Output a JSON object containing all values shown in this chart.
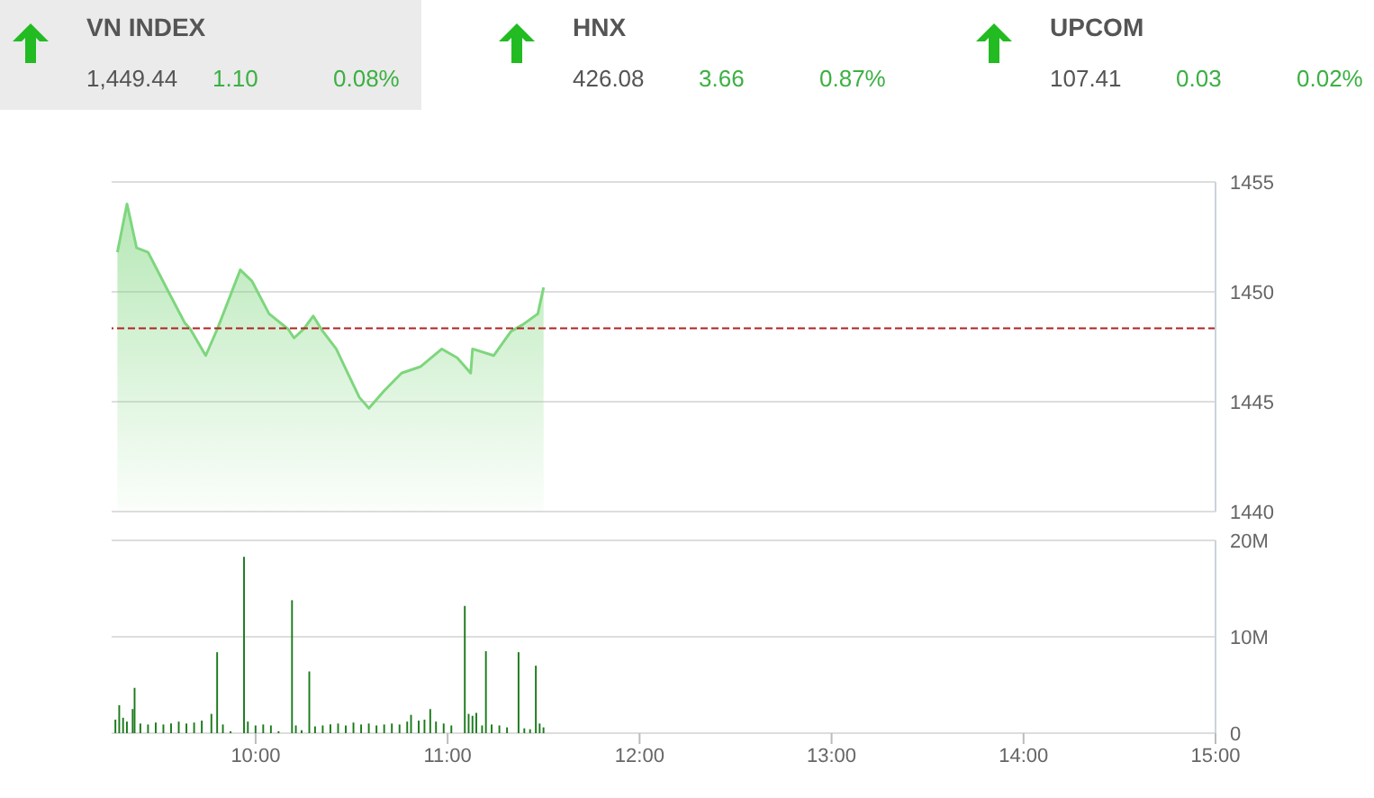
{
  "chart_data": [
    {
      "type": "other",
      "categories": [
        "VN INDEX",
        "HNX",
        "UPCOM"
      ],
      "annotations": [
        "1,449.44",
        "1.10",
        "0.08%",
        "426.08",
        "3.66",
        "0.87%",
        "107.41",
        "0.03",
        "0.02%"
      ]
    },
    {
      "type": "area",
      "xlim": [
        9.25,
        15
      ],
      "ylim": [
        1440,
        1455
      ],
      "yticks": [
        1440,
        1445,
        1450,
        1455
      ],
      "grid": "y",
      "tick_labels": "y",
      "ref_lines": [
        {
          "axis": "y",
          "value": 1448.34,
          "color": "#b22222",
          "line_style": "dashed"
        }
      ],
      "series": [
        {
          "color": "#7ed67e",
          "x": [
            9.28,
            9.33,
            9.38,
            9.44,
            9.54,
            9.63,
            9.66,
            9.74,
            9.8,
            9.92,
            9.98,
            10.07,
            10.17,
            10.2,
            10.25,
            10.3,
            10.35,
            10.42,
            10.48,
            10.54,
            10.59,
            10.67,
            10.76,
            10.86,
            10.97,
            11.05,
            11.12,
            11.13,
            11.24,
            11.33,
            11.39,
            11.47,
            11.5
          ],
          "values": [
            1451.8,
            1454.0,
            1452.0,
            1451.8,
            1450.1,
            1448.6,
            1448.3,
            1447.1,
            1448.3,
            1451.0,
            1450.5,
            1449.0,
            1448.3,
            1447.9,
            1448.3,
            1448.9,
            1448.2,
            1447.4,
            1446.3,
            1445.2,
            1444.7,
            1445.5,
            1446.3,
            1446.6,
            1447.4,
            1447.0,
            1446.3,
            1447.4,
            1447.1,
            1448.2,
            1448.5,
            1449.0,
            1450.2
          ]
        }
      ]
    },
    {
      "type": "bar",
      "xlim": [
        9.25,
        15
      ],
      "xticks": [
        {
          "value": 10,
          "label": "10:00"
        },
        {
          "value": 11,
          "label": "11:00"
        },
        {
          "value": 12,
          "label": "12:00"
        },
        {
          "value": 13,
          "label": "13:00"
        },
        {
          "value": 14,
          "label": "14:00"
        },
        {
          "value": 15,
          "label": "15:00"
        }
      ],
      "ylim": [
        0,
        20
      ],
      "yticks": [
        0,
        {
          "value": 10,
          "label": "10M"
        },
        {
          "value": 20,
          "label": "20M"
        }
      ],
      "grid": "y",
      "series": [
        {
          "color": "#1a7a1a",
          "x": [
            9.27,
            9.29,
            9.31,
            9.33,
            9.36,
            9.37,
            9.4,
            9.44,
            9.48,
            9.52,
            9.56,
            9.6,
            9.64,
            9.68,
            9.72,
            9.77,
            9.8,
            9.83,
            9.87,
            9.91,
            9.94,
            9.96,
            10.0,
            10.04,
            10.08,
            10.12,
            10.16,
            10.19,
            10.21,
            10.24,
            10.28,
            10.31,
            10.35,
            10.39,
            10.43,
            10.47,
            10.51,
            10.55,
            10.59,
            10.63,
            10.67,
            10.71,
            10.75,
            10.79,
            10.81,
            10.85,
            10.88,
            10.91,
            10.94,
            10.98,
            11.02,
            11.06,
            11.09,
            11.11,
            11.13,
            11.15,
            11.18,
            11.2,
            11.23,
            11.27,
            11.31,
            11.34,
            11.37,
            11.4,
            11.43,
            11.46,
            11.48,
            11.5
          ],
          "values": [
            1.4,
            2.9,
            1.6,
            1.2,
            2.5,
            4.7,
            1.0,
            0.9,
            1.1,
            0.9,
            1.0,
            1.2,
            1.0,
            1.1,
            1.3,
            2.0,
            8.4,
            0.9,
            0.2,
            null,
            18.3,
            1.2,
            0.8,
            0.9,
            0.8,
            0.2,
            null,
            13.8,
            0.8,
            0.3,
            6.4,
            0.7,
            0.8,
            0.9,
            1.0,
            0.8,
            1.1,
            0.9,
            1.0,
            0.8,
            0.9,
            1.0,
            0.9,
            1.2,
            1.9,
            1.3,
            1.4,
            2.5,
            1.2,
            1.0,
            0.8,
            null,
            13.2,
            2.0,
            1.8,
            2.1,
            0.8,
            8.5,
            0.9,
            0.8,
            0.6,
            null,
            8.4,
            0.5,
            0.4,
            7.0,
            1.0,
            0.6
          ]
        }
      ]
    }
  ]
}
